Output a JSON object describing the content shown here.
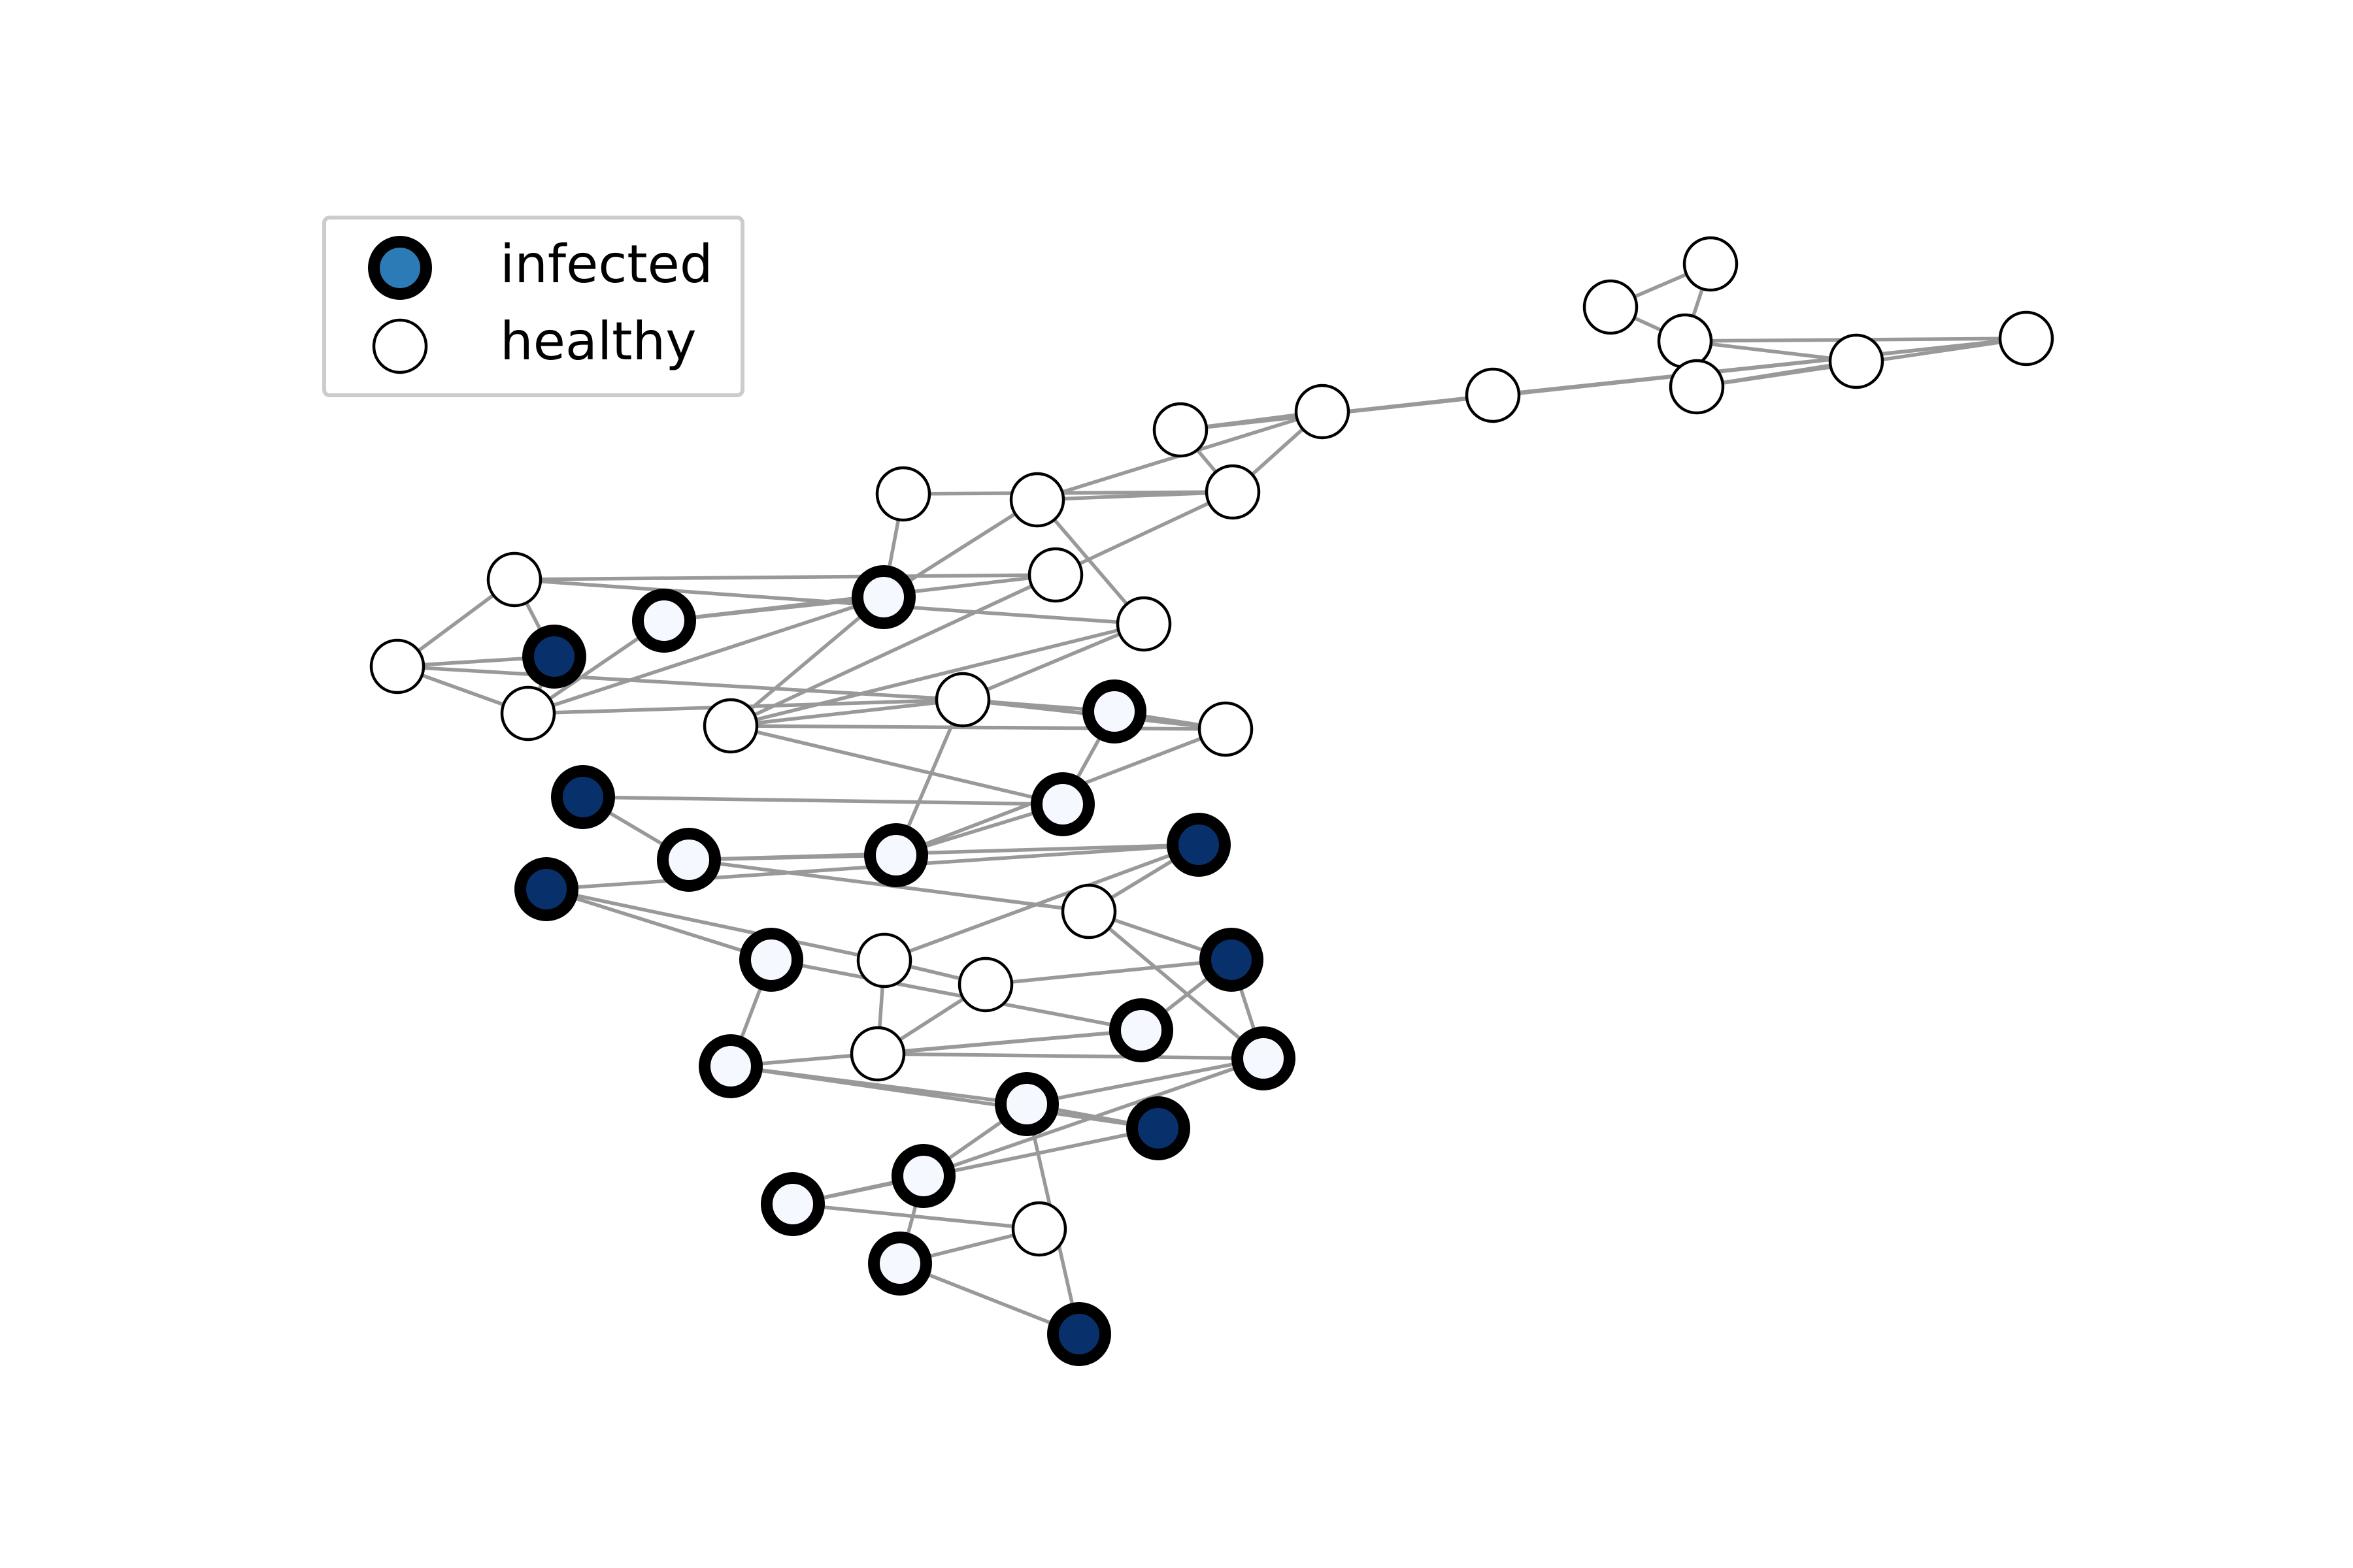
{
  "legend": {
    "infected_label": "infected",
    "healthy_label": "healthy",
    "infected_color": "#2c7bb6",
    "healthy_color": "#ffffff"
  },
  "colors": {
    "edge": "#999999",
    "node_outline": "#000000",
    "infected_fill_dark": "#08306b",
    "infected_fill_light": "#f5f9ff"
  },
  "graph": {
    "nodes": [
      {
        "id": "n1",
        "state": "healthy"
      },
      {
        "id": "n2",
        "state": "healthy"
      },
      {
        "id": "n3",
        "state": "healthy"
      },
      {
        "id": "n4",
        "state": "healthy"
      },
      {
        "id": "n5",
        "state": "healthy"
      },
      {
        "id": "n6",
        "state": "healthy"
      },
      {
        "id": "n7",
        "state": "healthy"
      },
      {
        "id": "n8",
        "state": "healthy"
      },
      {
        "id": "n9",
        "state": "healthy"
      },
      {
        "id": "n10",
        "state": "healthy"
      },
      {
        "id": "n11",
        "state": "healthy"
      },
      {
        "id": "n12",
        "state": "healthy"
      },
      {
        "id": "n13",
        "state": "infected",
        "intensity": "low"
      },
      {
        "id": "n14",
        "state": "healthy"
      },
      {
        "id": "n15",
        "state": "healthy"
      },
      {
        "id": "n16",
        "state": "healthy"
      },
      {
        "id": "n17",
        "state": "infected",
        "intensity": "high"
      },
      {
        "id": "n18",
        "state": "infected",
        "intensity": "low"
      },
      {
        "id": "n19",
        "state": "healthy"
      },
      {
        "id": "n20",
        "state": "healthy"
      },
      {
        "id": "n21",
        "state": "healthy"
      },
      {
        "id": "n22",
        "state": "healthy"
      },
      {
        "id": "n23",
        "state": "infected",
        "intensity": "low"
      },
      {
        "id": "n24",
        "state": "healthy"
      },
      {
        "id": "n25",
        "state": "infected",
        "intensity": "low"
      },
      {
        "id": "n26",
        "state": "infected",
        "intensity": "high"
      },
      {
        "id": "n27",
        "state": "infected",
        "intensity": "low"
      },
      {
        "id": "n28",
        "state": "infected",
        "intensity": "low"
      },
      {
        "id": "n29",
        "state": "infected",
        "intensity": "high"
      },
      {
        "id": "n30",
        "state": "infected",
        "intensity": "high"
      },
      {
        "id": "n31",
        "state": "healthy"
      },
      {
        "id": "n32",
        "state": "infected",
        "intensity": "low"
      },
      {
        "id": "n33",
        "state": "infected",
        "intensity": "high"
      },
      {
        "id": "n34",
        "state": "healthy"
      },
      {
        "id": "n35",
        "state": "healthy"
      },
      {
        "id": "n36",
        "state": "infected",
        "intensity": "low"
      },
      {
        "id": "n37",
        "state": "infected",
        "intensity": "low"
      },
      {
        "id": "n38",
        "state": "infected",
        "intensity": "low"
      },
      {
        "id": "n39",
        "state": "healthy"
      },
      {
        "id": "n40",
        "state": "infected",
        "intensity": "low"
      },
      {
        "id": "n41",
        "state": "infected",
        "intensity": "high"
      },
      {
        "id": "n42",
        "state": "infected",
        "intensity": "low"
      },
      {
        "id": "n43",
        "state": "infected",
        "intensity": "low"
      },
      {
        "id": "n44",
        "state": "infected",
        "intensity": "low"
      },
      {
        "id": "n45",
        "state": "healthy"
      },
      {
        "id": "n46",
        "state": "infected",
        "intensity": "high"
      }
    ],
    "edges": [
      [
        "n1",
        "n2"
      ],
      [
        "n1",
        "n3"
      ],
      [
        "n2",
        "n3"
      ],
      [
        "n3",
        "n4"
      ],
      [
        "n3",
        "n5"
      ],
      [
        "n4",
        "n5"
      ],
      [
        "n5",
        "n6"
      ],
      [
        "n3",
        "n6"
      ],
      [
        "n6",
        "n7"
      ],
      [
        "n6",
        "n8"
      ],
      [
        "n7",
        "n8"
      ],
      [
        "n8",
        "n9"
      ],
      [
        "n9",
        "n10"
      ],
      [
        "n8",
        "n10"
      ],
      [
        "n9",
        "n12"
      ],
      [
        "n10",
        "n12"
      ],
      [
        "n11",
        "n10"
      ],
      [
        "n11",
        "n13"
      ],
      [
        "n12",
        "n13"
      ],
      [
        "n12",
        "n15"
      ],
      [
        "n10",
        "n14"
      ],
      [
        "n14",
        "n16"
      ],
      [
        "n15",
        "n16"
      ],
      [
        "n15",
        "n21"
      ],
      [
        "n13",
        "n20"
      ],
      [
        "n13",
        "n18"
      ],
      [
        "n16",
        "n17"
      ],
      [
        "n16",
        "n19"
      ],
      [
        "n17",
        "n19"
      ],
      [
        "n17",
        "n20"
      ],
      [
        "n19",
        "n20"
      ],
      [
        "n19",
        "n22"
      ],
      [
        "n20",
        "n22"
      ],
      [
        "n22",
        "n24"
      ],
      [
        "n24",
        "n23"
      ],
      [
        "n13",
        "n21"
      ],
      [
        "n21",
        "n24"
      ],
      [
        "n21",
        "n14"
      ],
      [
        "n21",
        "n22"
      ],
      [
        "n18",
        "n20"
      ],
      [
        "n15",
        "n22"
      ],
      [
        "n23",
        "n25"
      ],
      [
        "n21",
        "n25"
      ],
      [
        "n25",
        "n26"
      ],
      [
        "n25",
        "n27"
      ],
      [
        "n24",
        "n27"
      ],
      [
        "n22",
        "n27"
      ],
      [
        "n27",
        "n28"
      ],
      [
        "n26",
        "n28"
      ],
      [
        "n22",
        "n23"
      ],
      [
        "n23",
        "n25"
      ],
      [
        "n18",
        "n14"
      ],
      [
        "n28",
        "n29"
      ],
      [
        "n29",
        "n30"
      ],
      [
        "n28",
        "n31"
      ],
      [
        "n31",
        "n29"
      ],
      [
        "n30",
        "n34"
      ],
      [
        "n29",
        "n34"
      ],
      [
        "n30",
        "n32"
      ],
      [
        "n31",
        "n33"
      ],
      [
        "n31",
        "n37"
      ],
      [
        "n33",
        "n37"
      ],
      [
        "n33",
        "n36"
      ],
      [
        "n32",
        "n36"
      ],
      [
        "n32",
        "n38"
      ],
      [
        "n36",
        "n38"
      ],
      [
        "n36",
        "n39"
      ],
      [
        "n39",
        "n34"
      ],
      [
        "n34",
        "n35"
      ],
      [
        "n35",
        "n39"
      ],
      [
        "n35",
        "n33"
      ],
      [
        "n39",
        "n37"
      ],
      [
        "n37",
        "n40"
      ],
      [
        "n40",
        "n38"
      ],
      [
        "n37",
        "n42"
      ],
      [
        "n42",
        "n40"
      ],
      [
        "n38",
        "n41"
      ],
      [
        "n41",
        "n40"
      ],
      [
        "n41",
        "n43"
      ],
      [
        "n43",
        "n42"
      ],
      [
        "n42",
        "n44"
      ],
      [
        "n43",
        "n45"
      ],
      [
        "n45",
        "n44"
      ],
      [
        "n44",
        "n46"
      ],
      [
        "n42",
        "n40"
      ],
      [
        "n45",
        "n43"
      ],
      [
        "n46",
        "n40"
      ]
    ]
  }
}
